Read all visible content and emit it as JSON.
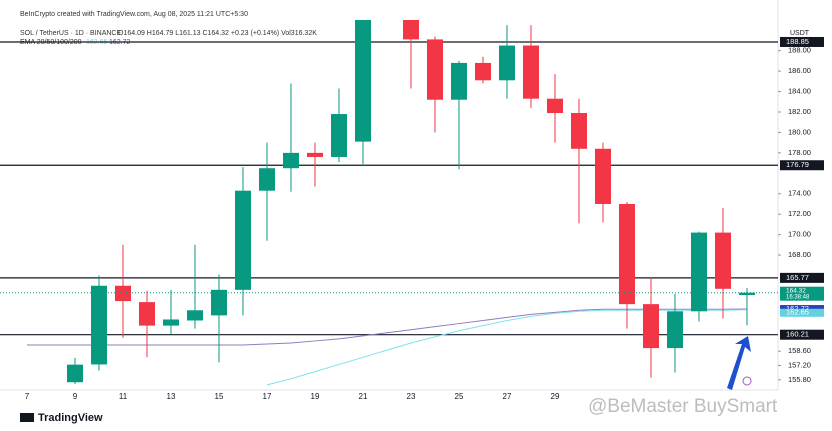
{
  "chart_data": {
    "type": "candlestick",
    "credit": "BeInCrypto created with TradingView.com, Aug 08, 2025 11:21 UTC+5:30",
    "symbol": "SOL / TetherUS · 1D · BINANCE",
    "ohlc_text": "O164.09 H164.79 L161.13 C164.32 +0.23 (+0.14%) Vol316.32K",
    "ema_title": "EMA 20/50/100/200",
    "ema_text_1": "162.65",
    "ema_text_2": "162.72",
    "currency": "USDT",
    "countdown": "16:38:48",
    "brand": "TradingView",
    "watermark": "@BeMaster BuySmart",
    "categories": [
      "7",
      null,
      "9",
      null,
      "11",
      null,
      "13",
      null,
      "15",
      null,
      "17",
      null,
      "19",
      null,
      "21",
      null,
      "23",
      null,
      "25",
      null,
      "27",
      null,
      "29",
      null,
      null,
      null,
      null,
      null,
      null,
      null,
      null
    ],
    "open": [
      null,
      null,
      155.56,
      157.3,
      165.0,
      163.4,
      161.1,
      161.6,
      162.1,
      164.6,
      174.3,
      176.5,
      178.0,
      177.6,
      179.1,
      null,
      191.5,
      189.1,
      183.2,
      186.8,
      185.1,
      188.5,
      183.3,
      181.9,
      178.4,
      173.0,
      163.2,
      158.9,
      162.5,
      170.2,
      164.09
    ],
    "high": [
      null,
      null,
      157.95,
      166.0,
      169.0,
      164.5,
      164.6,
      169.0,
      166.1,
      176.6,
      179.0,
      184.8,
      179.0,
      184.3,
      193.0,
      null,
      192.0,
      189.4,
      187.0,
      187.4,
      190.5,
      190.5,
      185.7,
      183.3,
      179.0,
      173.2,
      165.8,
      164.2,
      170.3,
      172.6,
      164.79
    ],
    "low": [
      null,
      null,
      155.37,
      156.7,
      159.9,
      158.0,
      160.2,
      160.8,
      157.5,
      162.1,
      169.4,
      174.2,
      174.7,
      177.1,
      176.7,
      null,
      184.3,
      180.0,
      176.4,
      184.8,
      183.3,
      182.4,
      179.0,
      171.1,
      171.2,
      160.8,
      156.0,
      156.5,
      161.5,
      161.8,
      161.13
    ],
    "close": [
      null,
      null,
      157.28,
      165.0,
      163.5,
      161.1,
      161.7,
      162.6,
      164.6,
      174.3,
      176.5,
      178.0,
      177.6,
      181.8,
      192.0,
      null,
      189.1,
      183.2,
      186.8,
      185.1,
      188.5,
      183.3,
      181.9,
      178.4,
      173.0,
      163.2,
      158.9,
      162.5,
      170.2,
      164.7,
      164.32
    ],
    "up_color": "#089981",
    "down_color": "#f23645",
    "ema_series": [
      {
        "color": "#8e7cc3",
        "values": [
          159.2,
          159.2,
          159.2,
          159.2,
          159.2,
          159.2,
          159.2,
          159.2,
          159.2,
          159.2,
          159.3,
          159.4,
          159.6,
          159.8,
          160.1,
          160.4,
          160.7,
          161.0,
          161.3,
          161.6,
          161.9,
          162.2,
          162.4,
          162.6,
          162.7,
          162.7,
          162.7,
          162.7,
          162.7,
          162.7,
          162.72
        ]
      },
      {
        "color": "#7fe3ee",
        "values": [
          null,
          null,
          null,
          null,
          null,
          null,
          null,
          null,
          null,
          null,
          155.3,
          155.9,
          156.6,
          157.3,
          158.0,
          158.7,
          159.4,
          160.0,
          160.6,
          161.1,
          161.6,
          162.0,
          162.3,
          162.5,
          162.6,
          162.6,
          162.6,
          162.6,
          162.6,
          162.6,
          162.65
        ]
      }
    ],
    "levels": [
      188.85,
      176.79,
      165.77,
      160.21
    ],
    "ylim": [
      154.8,
      191
    ],
    "yticks": [
      {
        "value": 188,
        "label": "188.00"
      },
      {
        "value": 186,
        "label": "186.00"
      },
      {
        "value": 184,
        "label": "184.00"
      },
      {
        "value": 182,
        "label": "182.00"
      },
      {
        "value": 180,
        "label": "180.00"
      },
      {
        "value": 178,
        "label": "178.00"
      },
      {
        "value": 174,
        "label": "174.00"
      },
      {
        "value": 172,
        "label": "172.00"
      },
      {
        "value": 170,
        "label": "170.00"
      },
      {
        "value": 168,
        "label": "168.00"
      },
      {
        "value": 158.6,
        "label": "158.60"
      },
      {
        "value": 157.2,
        "label": "157.20"
      },
      {
        "value": 155.8,
        "label": "155.80"
      }
    ]
  }
}
